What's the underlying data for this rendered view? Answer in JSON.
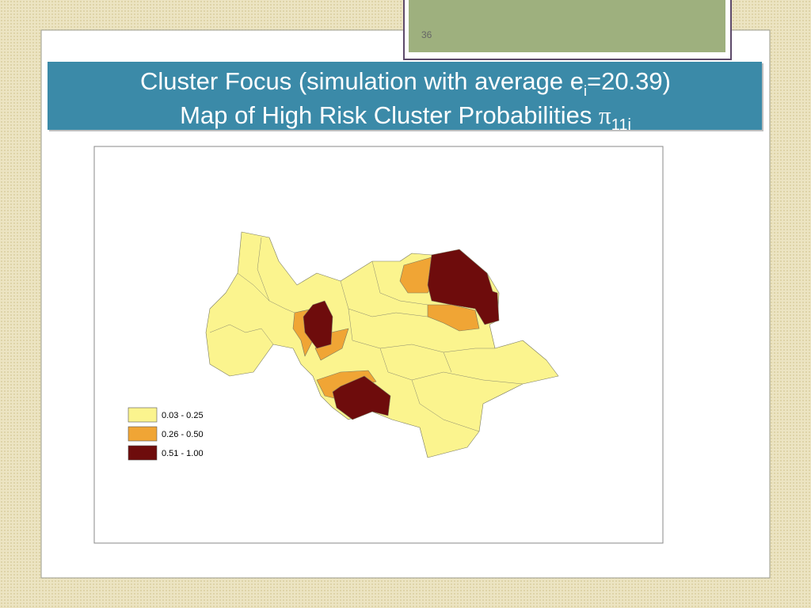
{
  "slide_number": "36",
  "title": {
    "line1": {
      "text": "Cluster Focus (simulation with average e",
      "subscript": "i",
      "after": "=20.39)"
    },
    "line2": {
      "text": "Map of High Risk Cluster Probabilities ",
      "symbol": "π",
      "subscript": "11i"
    }
  },
  "legend": [
    {
      "label": "0.03 - 0.25",
      "color": "#fbf48e"
    },
    {
      "label": "0.26 - 0.50",
      "color": "#f0a535"
    },
    {
      "label": "0.51 - 1.00",
      "color": "#6e0c0c"
    }
  ]
}
